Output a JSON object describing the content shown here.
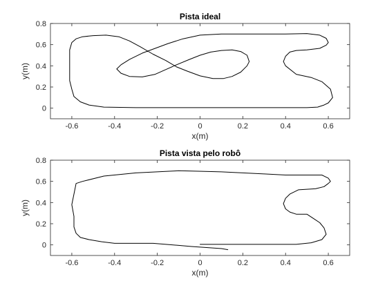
{
  "chart_data": [
    {
      "type": "line",
      "title": "Pista ideal",
      "xlabel": "x(m)",
      "ylabel": "y(m)",
      "xlim": [
        -0.7,
        0.7
      ],
      "ylim": [
        -0.1,
        0.8
      ],
      "xticks": [
        -0.6,
        -0.4,
        -0.2,
        0,
        0.2,
        0.4,
        0.6
      ],
      "yticks": [
        0,
        0.2,
        0.4,
        0.6,
        0.8
      ],
      "xtick_labels": [
        "-0.6",
        "-0.4",
        "-0.2",
        "0",
        "0.2",
        "0.4",
        "0.6"
      ],
      "ytick_labels": [
        "0",
        "0.2",
        "0.4",
        "0.6",
        "0.8"
      ],
      "grid": false,
      "series": [
        {
          "color": "#000000",
          "x": [
            0.4,
            0.45,
            0.52,
            0.57,
            0.61,
            0.62,
            0.6,
            0.58,
            0.55,
            0.5,
            0.45,
            0.4,
            0.3,
            0.1,
            -0.1,
            -0.3,
            -0.45,
            -0.52,
            -0.56,
            -0.59,
            -0.6,
            -0.61,
            -0.61,
            -0.61,
            -0.6,
            -0.58,
            -0.55,
            -0.5,
            -0.44,
            -0.38,
            -0.33,
            -0.28,
            -0.22,
            -0.16,
            -0.11,
            -0.06,
            0.0,
            0.06,
            0.11,
            0.15,
            0.19,
            0.22,
            0.23,
            0.22,
            0.19,
            0.15,
            0.1,
            0.05,
            0.0,
            -0.05,
            -0.11,
            -0.16,
            -0.21,
            -0.27,
            -0.33,
            -0.37,
            -0.39,
            -0.37,
            -0.33,
            -0.27,
            -0.21,
            -0.15,
            -0.08,
            0.0,
            0.1,
            0.25,
            0.4,
            0.5,
            0.56,
            0.59,
            0.6,
            0.59,
            0.56,
            0.5,
            0.45,
            0.42,
            0.4,
            0.39,
            0.4
          ],
          "y": [
            0.4,
            0.32,
            0.29,
            0.25,
            0.18,
            0.1,
            0.05,
            0.03,
            0.01,
            0.005,
            0.005,
            0.005,
            0.005,
            0.005,
            0.005,
            0.005,
            0.01,
            0.03,
            0.06,
            0.11,
            0.18,
            0.26,
            0.4,
            0.55,
            0.62,
            0.655,
            0.675,
            0.685,
            0.69,
            0.675,
            0.635,
            0.58,
            0.51,
            0.45,
            0.39,
            0.35,
            0.305,
            0.28,
            0.28,
            0.3,
            0.34,
            0.4,
            0.44,
            0.5,
            0.535,
            0.55,
            0.545,
            0.53,
            0.5,
            0.46,
            0.41,
            0.365,
            0.32,
            0.295,
            0.3,
            0.33,
            0.37,
            0.41,
            0.46,
            0.52,
            0.565,
            0.61,
            0.655,
            0.69,
            0.7,
            0.7,
            0.7,
            0.705,
            0.69,
            0.66,
            0.62,
            0.595,
            0.565,
            0.55,
            0.545,
            0.53,
            0.49,
            0.44,
            0.4
          ]
        }
      ]
    },
    {
      "type": "line",
      "title": "Pista vista pelo robô",
      "xlabel": "x(m)",
      "ylabel": "y(m)",
      "xlim": [
        -0.7,
        0.7
      ],
      "ylim": [
        -0.1,
        0.8
      ],
      "xticks": [
        -0.6,
        -0.4,
        -0.2,
        0,
        0.2,
        0.4,
        0.6
      ],
      "yticks": [
        0,
        0.2,
        0.4,
        0.6,
        0.8
      ],
      "xtick_labels": [
        "-0.6",
        "-0.4",
        "-0.2",
        "0",
        "0.2",
        "0.4",
        "0.6"
      ],
      "ytick_labels": [
        "0",
        "0.2",
        "0.4",
        "0.6",
        "0.8"
      ],
      "grid": false,
      "series": [
        {
          "color": "#000000",
          "x": [
            0.0,
            0.1,
            0.3,
            0.45,
            0.52,
            0.57,
            0.59,
            0.58,
            0.56,
            0.53,
            0.5,
            0.45,
            0.42,
            0.4,
            0.39,
            0.4,
            0.42,
            0.46,
            0.54,
            0.58,
            0.6,
            0.61,
            0.6,
            0.57,
            0.5,
            0.4,
            0.3,
            0.1,
            -0.1,
            -0.3,
            -0.45,
            -0.55,
            -0.58,
            -0.59,
            -0.6,
            -0.59,
            -0.59,
            -0.58,
            -0.56,
            -0.52,
            -0.46,
            -0.4,
            -0.36,
            -0.32,
            -0.27,
            -0.22,
            -0.16,
            -0.1,
            -0.04,
            0.03,
            0.1,
            0.16,
            0.21,
            0.23,
            0.23,
            0.21,
            0.16,
            0.1,
            0.05,
            0.0,
            -0.05,
            -0.11,
            -0.17,
            -0.22,
            -0.27,
            -0.33,
            -0.37,
            -0.39,
            -0.37,
            -0.33,
            -0.27,
            -0.21,
            -0.16,
            -0.1,
            -0.05,
            0.0,
            0.05,
            0.1
          ],
          "y": [
            0.005,
            0.005,
            0.005,
            0.005,
            0.02,
            0.05,
            0.1,
            0.16,
            0.21,
            0.25,
            0.29,
            0.29,
            0.31,
            0.34,
            0.39,
            0.44,
            0.48,
            0.52,
            0.53,
            0.55,
            0.58,
            0.6,
            0.63,
            0.66,
            0.66,
            0.66,
            0.67,
            0.69,
            0.7,
            0.68,
            0.65,
            0.6,
            0.58,
            0.48,
            0.38,
            0.27,
            0.17,
            0.11,
            0.07,
            0.05,
            0.03,
            0.015,
            0.015,
            0.015,
            0.015,
            0.015,
            0.005,
            -0.005,
            -0.015,
            -0.025,
            -0.035,
            -0.045,
            -0.06,
            -0.06,
            -0.06,
            -0.06,
            -0.06,
            -0.06,
            -0.06,
            -0.06,
            -0.06,
            -0.06,
            -0.06,
            -0.06,
            -0.06,
            -0.06,
            -0.06,
            -0.06,
            -0.06,
            -0.06,
            -0.06,
            -0.06,
            -0.06,
            -0.06,
            -0.06,
            -0.06,
            -0.06,
            -0.06
          ]
        }
      ]
    }
  ]
}
